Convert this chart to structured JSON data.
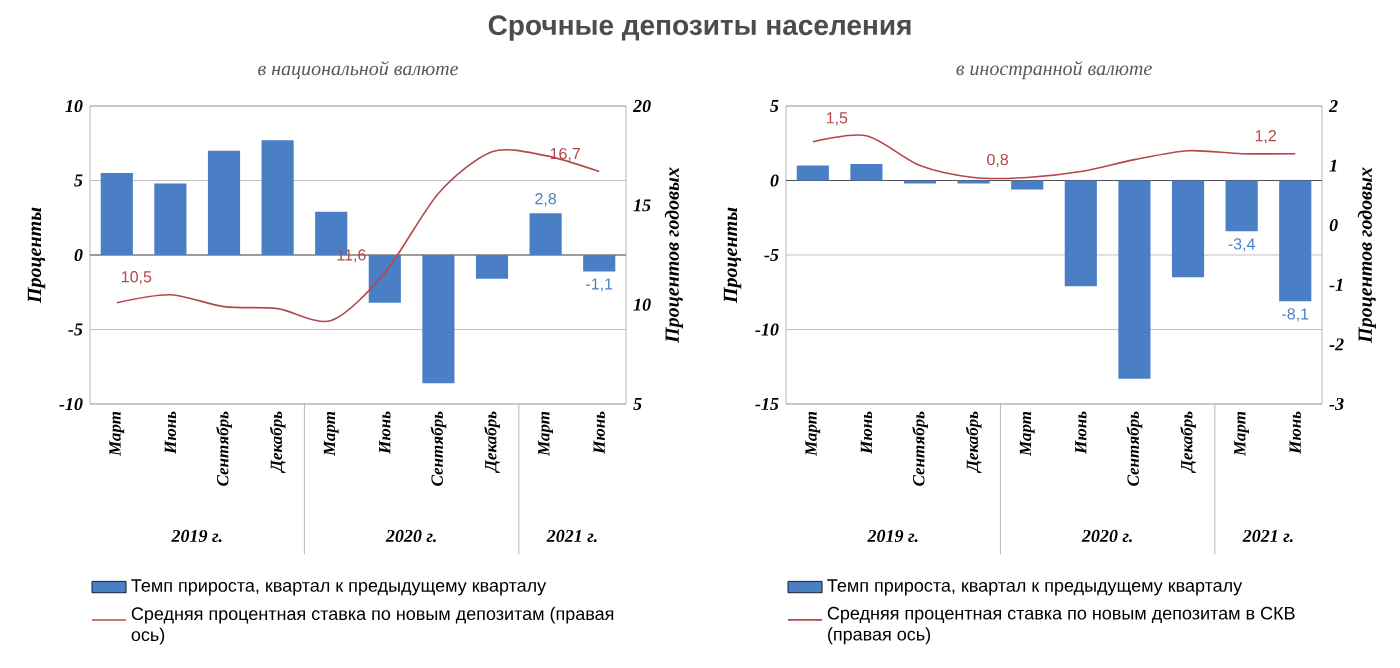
{
  "chart_data": [
    {
      "type": "bar",
      "title": "Срочные депозиты населения",
      "subtitle": "в национальной валюте",
      "categories": [
        "Март",
        "Июнь",
        "Сентябрь",
        "Декабрь",
        "Март",
        "Июнь",
        "Сентябрь",
        "Декабрь",
        "Март",
        "Июнь"
      ],
      "series": [
        {
          "type": "bar",
          "name": "Темп прироста, квартал к предыдущему кварталу",
          "color": "#4a7fc6",
          "values": [
            5.5,
            4.8,
            7.0,
            7.7,
            2.9,
            -3.2,
            -8.6,
            -1.6,
            2.8,
            -1.1
          ],
          "value_labels": [
            null,
            null,
            null,
            null,
            null,
            null,
            null,
            null,
            "2,8",
            "-1,1"
          ]
        },
        {
          "type": "line",
          "axis": "y2",
          "name": "Средняя процентная ставка по новым депозитам (правая ось)",
          "color": "#b5474b",
          "values": [
            10.1,
            10.5,
            9.9,
            9.8,
            9.2,
            11.6,
            15.6,
            17.7,
            17.5,
            16.7
          ],
          "value_labels": [
            null,
            "10,5",
            null,
            null,
            null,
            "11,6",
            null,
            null,
            null,
            "16,7"
          ]
        }
      ],
      "ylabel": "Проценты",
      "y2label": "Процентов годовых",
      "ylim": [
        -10,
        10
      ],
      "yticks": [
        -10,
        -5,
        0,
        5,
        10
      ],
      "y2lim": [
        5,
        20
      ],
      "y2ticks": [
        5,
        10,
        15,
        20
      ],
      "annotations": [
        "2019 г.",
        "2020 г.",
        "2021 г."
      ],
      "grid": "y",
      "legend": "bottom"
    },
    {
      "type": "bar",
      "subtitle": "в иностранной валюте",
      "categories": [
        "Март",
        "Июнь",
        "Сентябрь",
        "Декабрь",
        "Март",
        "Июнь",
        "Сентябрь",
        "Декабрь",
        "Март",
        "Июнь"
      ],
      "series": [
        {
          "type": "bar",
          "name": "Темп прироста, квартал к предыдущему кварталу",
          "color": "#4a7fc6",
          "values": [
            1.0,
            1.1,
            -0.2,
            -0.2,
            -0.6,
            -7.1,
            -13.3,
            -6.5,
            -3.4,
            -8.1
          ],
          "value_labels": [
            null,
            null,
            null,
            null,
            null,
            null,
            null,
            null,
            "-3,4",
            "-8,1"
          ]
        },
        {
          "type": "line",
          "axis": "y2",
          "name": "Средняя процентная ставка по новым депозитам в СКВ (правая ось)",
          "color": "#b5474b",
          "values": [
            1.4,
            1.5,
            1.0,
            0.8,
            0.8,
            0.9,
            1.1,
            1.25,
            1.2,
            1.2
          ],
          "value_labels": [
            null,
            "1,5",
            null,
            null,
            "0,8",
            null,
            null,
            null,
            null,
            "1,2"
          ]
        }
      ],
      "ylabel": "Проценты",
      "y2label": "Процентов годовых",
      "ylim": [
        -15,
        5
      ],
      "yticks": [
        -15,
        -10,
        -5,
        0,
        5
      ],
      "y2lim": [
        -3,
        2
      ],
      "y2ticks": [
        -3,
        -2,
        -1,
        0,
        1,
        2
      ],
      "annotations": [
        "2019 г.",
        "2020 г.",
        "2021 г."
      ],
      "grid": "y",
      "legend": "bottom"
    }
  ]
}
